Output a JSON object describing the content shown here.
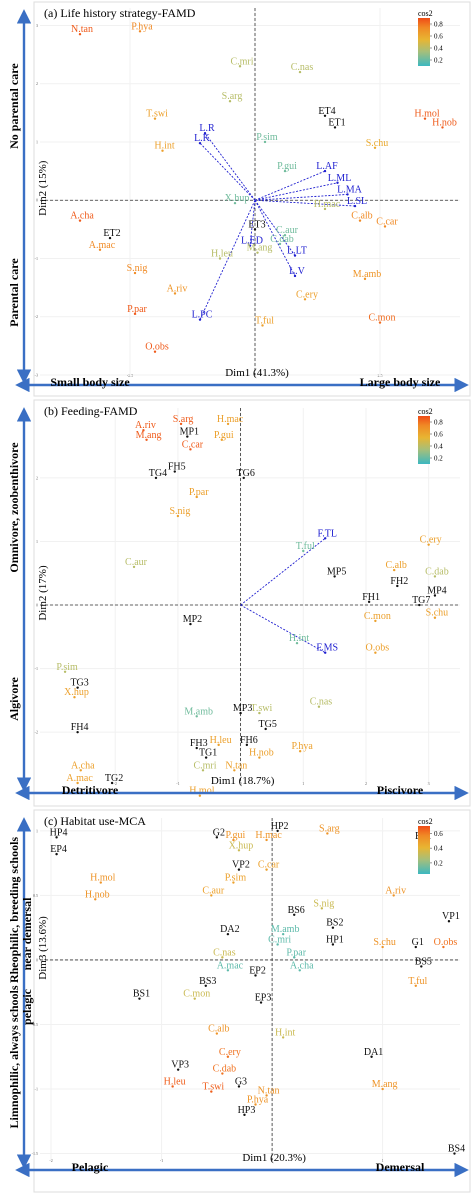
{
  "colors": {
    "black": "#111111",
    "blue": "#1f1fd0",
    "teal": "#39b5b5",
    "sage": "#9bb08a",
    "gold": "#e2b43a",
    "orange": "#e06a1e",
    "arrow": "#3a6fc4",
    "frame": "#dddddd"
  },
  "cos2_gradient": [
    "#3cb8c0",
    "#a6bf7a",
    "#e8b532",
    "#f08a25",
    "#ef4b17"
  ],
  "chart_data": [
    {
      "type": "scatter",
      "title": "(a) Life history strategy-FAMD",
      "xlabel": "Dim1 (41.3%)",
      "ylabel": "Dim2 (15%)",
      "left_top": "No parental care",
      "left_bottom": "Parental care",
      "bottom_left": "Small body size",
      "bottom_right": "Large body size",
      "xlim": [
        -4.3,
        4.1
      ],
      "ylim": [
        -3.0,
        3.3
      ],
      "x_ticks": [
        -2.5,
        0,
        2.5
      ],
      "y_ticks": [
        -3,
        -2,
        -1,
        0,
        1,
        2,
        3
      ],
      "legend": {
        "title": "cos2",
        "ticks": [
          0.2,
          0.4,
          0.6,
          0.8
        ],
        "range": [
          0.1,
          0.9
        ],
        "placement": "top-right"
      },
      "points": [
        {
          "label": "N.tan",
          "x": -3.5,
          "y": 2.85,
          "cos2": 0.85
        },
        {
          "label": "P.hya",
          "x": -2.3,
          "y": 2.9,
          "cos2": 0.7
        },
        {
          "label": "C.mri",
          "x": -0.3,
          "y": 2.3,
          "cos2": 0.35
        },
        {
          "label": "C.nas",
          "x": 0.9,
          "y": 2.2,
          "cos2": 0.35
        },
        {
          "label": "S.arg",
          "x": -0.5,
          "y": 1.7,
          "cos2": 0.35
        },
        {
          "label": "ET4",
          "x": 1.4,
          "y": 1.45,
          "cat": true
        },
        {
          "label": "ET1",
          "x": 1.6,
          "y": 1.25,
          "cat": true
        },
        {
          "label": "H.mol",
          "x": 3.4,
          "y": 1.4,
          "cos2": 0.85
        },
        {
          "label": "H.nob",
          "x": 3.75,
          "y": 1.25,
          "cos2": 0.85
        },
        {
          "label": "S.chu",
          "x": 2.4,
          "y": 0.9,
          "cos2": 0.55
        },
        {
          "label": "T.swi",
          "x": -2.0,
          "y": 1.4,
          "cos2": 0.6
        },
        {
          "label": "P.sim",
          "x": 0.2,
          "y": 1.0,
          "cos2": 0.2
        },
        {
          "label": "L.R",
          "x": -1.0,
          "y": 1.15,
          "sup": true
        },
        {
          "label": "L.K",
          "x": -1.1,
          "y": 0.98,
          "sup": true
        },
        {
          "label": "H.int",
          "x": -1.85,
          "y": 0.85,
          "cos2": 0.6
        },
        {
          "label": "P.gui",
          "x": 0.6,
          "y": 0.5,
          "cos2": 0.2
        },
        {
          "label": "L.AF",
          "x": 1.4,
          "y": 0.5,
          "sup": true
        },
        {
          "label": "L.ML",
          "x": 1.65,
          "y": 0.3,
          "sup": true
        },
        {
          "label": "L.MA",
          "x": 1.85,
          "y": 0.1,
          "sup": true
        },
        {
          "label": "L.SL",
          "x": 2.0,
          "y": -0.1,
          "sup": true
        },
        {
          "label": "X.hup",
          "x": -0.4,
          "y": -0.05,
          "cos2": 0.2
        },
        {
          "label": "H.mac",
          "x": 1.4,
          "y": -0.15,
          "cos2": 0.35
        },
        {
          "label": "C.alb",
          "x": 2.1,
          "y": -0.35,
          "cos2": 0.7
        },
        {
          "label": "C.car",
          "x": 2.6,
          "y": -0.45,
          "cos2": 0.7
        },
        {
          "label": "A.cha",
          "x": -3.5,
          "y": -0.35,
          "cos2": 0.85
        },
        {
          "label": "ET2",
          "x": -2.9,
          "y": -0.65,
          "cat": true
        },
        {
          "label": "ET3",
          "x": 0.0,
          "y": -0.5,
          "cat": true
        },
        {
          "label": "C.aur",
          "x": 0.6,
          "y": -0.6,
          "cos2": 0.2
        },
        {
          "label": "C.dab",
          "x": 0.5,
          "y": -0.75,
          "cos2": 0.2
        },
        {
          "label": "L.ED",
          "x": -0.1,
          "y": -0.78,
          "sup": true
        },
        {
          "label": "M.ang",
          "x": 0.05,
          "y": -0.9,
          "cos2": 0.35
        },
        {
          "label": "H.leu",
          "x": -0.7,
          "y": -1.0,
          "cos2": 0.35
        },
        {
          "label": "L.LT",
          "x": 0.8,
          "y": -0.95,
          "sup": true
        },
        {
          "label": "A.mac",
          "x": -3.1,
          "y": -0.85,
          "cos2": 0.7
        },
        {
          "label": "S.nig",
          "x": -2.4,
          "y": -1.25,
          "cos2": 0.7
        },
        {
          "label": "L.V",
          "x": 0.8,
          "y": -1.3,
          "sup": true
        },
        {
          "label": "M.amb",
          "x": 2.2,
          "y": -1.35,
          "cos2": 0.65
        },
        {
          "label": "A.riv",
          "x": -1.6,
          "y": -1.6,
          "cos2": 0.65
        },
        {
          "label": "C.ery",
          "x": 1.0,
          "y": -1.7,
          "cos2": 0.6
        },
        {
          "label": "P.par",
          "x": -2.4,
          "y": -1.95,
          "cos2": 0.85
        },
        {
          "label": "L.PC",
          "x": -1.1,
          "y": -2.05,
          "sup": true
        },
        {
          "label": "C.mon",
          "x": 2.5,
          "y": -2.1,
          "cos2": 0.8
        },
        {
          "label": "T.ful",
          "x": 0.15,
          "y": -2.15,
          "cos2": 0.6
        },
        {
          "label": "O.obs",
          "x": -2.0,
          "y": -2.6,
          "cos2": 0.85
        }
      ]
    },
    {
      "type": "scatter",
      "title": "(b) Feeding-FAMD",
      "xlabel": "Dim1 (18.7%)",
      "ylabel": "Dim2 (17%)",
      "left_top": "Omnivore, zoobenthivore",
      "left_bottom": "Algivore",
      "bottom_left": "Detritivore",
      "bottom_right": "Piscivore",
      "xlim": [
        -3.2,
        3.5
      ],
      "ylim": [
        -2.8,
        3.1
      ],
      "x_ticks": [
        -2,
        -1,
        0,
        1,
        2,
        3
      ],
      "y_ticks": [
        -2,
        -1,
        0,
        1,
        2
      ],
      "legend": {
        "title": "cos2",
        "ticks": [
          0.2,
          0.4,
          0.6,
          0.8
        ],
        "range": [
          0.1,
          0.9
        ],
        "placement": "top-right"
      },
      "points": [
        {
          "label": "A.riv",
          "x": -1.55,
          "y": 2.75,
          "cos2": 0.85
        },
        {
          "label": "S.arg",
          "x": -0.95,
          "y": 2.85,
          "cos2": 0.85
        },
        {
          "label": "H.mac",
          "x": -0.2,
          "y": 2.85,
          "cos2": 0.6
        },
        {
          "label": "M.ang",
          "x": -1.5,
          "y": 2.6,
          "cos2": 0.85
        },
        {
          "label": "MP1",
          "x": -0.85,
          "y": 2.65,
          "cat": true
        },
        {
          "label": "P.gui",
          "x": -0.3,
          "y": 2.6,
          "cos2": 0.6
        },
        {
          "label": "C.car",
          "x": -0.8,
          "y": 2.45,
          "cos2": 0.85
        },
        {
          "label": "FH5",
          "x": -1.05,
          "y": 2.1,
          "cat": true
        },
        {
          "label": "TG4",
          "x": -1.35,
          "y": 2.0,
          "cat": true
        },
        {
          "label": "TG6",
          "x": 0.05,
          "y": 2.0,
          "cat": true
        },
        {
          "label": "P.par",
          "x": -0.7,
          "y": 1.7,
          "cos2": 0.6
        },
        {
          "label": "S.nig",
          "x": -1.0,
          "y": 1.4,
          "cos2": 0.6
        },
        {
          "label": "F.TL",
          "x": 1.35,
          "y": 1.05,
          "sup": true
        },
        {
          "label": "T.ful",
          "x": 1.0,
          "y": 0.85,
          "cos2": 0.2
        },
        {
          "label": "C.aur",
          "x": -1.7,
          "y": 0.6,
          "cos2": 0.35
        },
        {
          "label": "MP5",
          "x": 1.5,
          "y": 0.45,
          "cat": true
        },
        {
          "label": "C.ery",
          "x": 3.0,
          "y": 0.95,
          "cos2": 0.6
        },
        {
          "label": "C.alb",
          "x": 2.45,
          "y": 0.55,
          "cos2": 0.6
        },
        {
          "label": "C.dab",
          "x": 3.1,
          "y": 0.45,
          "cos2": 0.35
        },
        {
          "label": "FH2",
          "x": 2.5,
          "y": 0.3,
          "cat": true
        },
        {
          "label": "MP4",
          "x": 3.1,
          "y": 0.15,
          "cat": true
        },
        {
          "label": "FH1",
          "x": 2.05,
          "y": 0.05,
          "cat": true
        },
        {
          "label": "TG7",
          "x": 2.85,
          "y": 0.0,
          "cat": true
        },
        {
          "label": "C.mon",
          "x": 2.15,
          "y": -0.25,
          "cos2": 0.6
        },
        {
          "label": "S.chu",
          "x": 3.1,
          "y": -0.2,
          "cos2": 0.6
        },
        {
          "label": "MP2",
          "x": -0.8,
          "y": -0.3,
          "cat": true
        },
        {
          "label": "H.int",
          "x": 0.9,
          "y": -0.6,
          "cos2": 0.2
        },
        {
          "label": "O.obs",
          "x": 2.15,
          "y": -0.75,
          "cos2": 0.6
        },
        {
          "label": "F.MS",
          "x": 1.35,
          "y": -0.75,
          "sup": true
        },
        {
          "label": "P.sim",
          "x": -2.8,
          "y": -1.05,
          "cos2": 0.35
        },
        {
          "label": "TG3",
          "x": -2.6,
          "y": -1.3,
          "cat": true
        },
        {
          "label": "X.hup",
          "x": -2.65,
          "y": -1.45,
          "cos2": 0.6
        },
        {
          "label": "C.nas",
          "x": 1.25,
          "y": -1.6,
          "cos2": 0.35
        },
        {
          "label": "M.amb",
          "x": -0.7,
          "y": -1.75,
          "cos2": 0.2
        },
        {
          "label": "MP3",
          "x": 0.0,
          "y": -1.7,
          "cat": true
        },
        {
          "label": "T.swi",
          "x": 0.3,
          "y": -1.7,
          "cos2": 0.35
        },
        {
          "label": "FH4",
          "x": -2.6,
          "y": -2.0,
          "cat": true
        },
        {
          "label": "TG5",
          "x": 0.4,
          "y": -1.95,
          "cat": true
        },
        {
          "label": "FH3",
          "x": -0.7,
          "y": -2.25,
          "cat": true
        },
        {
          "label": "H.leu",
          "x": -0.35,
          "y": -2.2,
          "cos2": 0.6
        },
        {
          "label": "FH6",
          "x": 0.1,
          "y": -2.2,
          "cat": true
        },
        {
          "label": "P.hya",
          "x": 0.95,
          "y": -2.3,
          "cos2": 0.6
        },
        {
          "label": "TG1",
          "x": -0.55,
          "y": -2.4,
          "cat": true
        },
        {
          "label": "H.nob",
          "x": 0.3,
          "y": -2.4,
          "cos2": 0.6
        },
        {
          "label": "A.cha",
          "x": -2.55,
          "y": -2.6,
          "cos2": 0.6
        },
        {
          "label": "N.tan",
          "x": -0.1,
          "y": -2.6,
          "cos2": 0.6
        },
        {
          "label": "C.mri",
          "x": -0.6,
          "y": -2.6,
          "cos2": 0.35
        },
        {
          "label": "A.mac",
          "x": -2.6,
          "y": -2.8,
          "cos2": 0.6
        },
        {
          "label": "TG2",
          "x": -2.05,
          "y": -2.8,
          "cat": true
        },
        {
          "label": "H.mol",
          "x": -0.65,
          "y": -3.0,
          "cos2": 0.6
        }
      ]
    },
    {
      "type": "scatter",
      "title": "(c) Habitat use-MCA",
      "xlabel": "Dim1 (20.3%)",
      "ylabel": "Dim3 (13.6%)",
      "left_top": "Rheophilic, breeding schools",
      "left_mid": "near demersal",
      "left_bottom": "Limnophilic, always schools",
      "left_mid2": "pelagic",
      "bottom_left": "Pelagic",
      "bottom_right": "Demersal",
      "xlim": [
        -2.1,
        1.7
      ],
      "ylim": [
        -1.55,
        1.1
      ],
      "x_ticks": [
        -2,
        -1,
        0,
        1
      ],
      "y_ticks": [
        -1.5,
        -1.0,
        -0.5,
        0.0,
        0.5,
        1.0
      ],
      "legend": {
        "title": "cos2",
        "ticks": [
          0.2,
          0.4,
          0.6
        ],
        "range": [
          0.05,
          0.7
        ],
        "placement": "top-right"
      },
      "points": [
        {
          "label": "HP4",
          "x": -1.95,
          "y": 0.95,
          "cat": true
        },
        {
          "label": "EP4",
          "x": -1.95,
          "y": 0.82,
          "cat": true
        },
        {
          "label": "G2",
          "x": -0.5,
          "y": 0.95,
          "cat": true
        },
        {
          "label": "HP2",
          "x": 0.05,
          "y": 1.0,
          "cat": true
        },
        {
          "label": "P.gui",
          "x": -0.35,
          "y": 0.93,
          "cos2": 0.5
        },
        {
          "label": "H.mac",
          "x": -0.05,
          "y": 0.93,
          "cos2": 0.5
        },
        {
          "label": "S.arg",
          "x": 0.5,
          "y": 0.98,
          "cos2": 0.5
        },
        {
          "label": "EP1",
          "x": 1.35,
          "y": 0.92,
          "cat": true
        },
        {
          "label": "X.hup",
          "x": -0.3,
          "y": 0.85,
          "cos2": 0.3
        },
        {
          "label": "H.mol",
          "x": -1.55,
          "y": 0.6,
          "cos2": 0.5
        },
        {
          "label": "VP2",
          "x": -0.3,
          "y": 0.7,
          "cat": true
        },
        {
          "label": "C.car",
          "x": -0.05,
          "y": 0.7,
          "cos2": 0.45
        },
        {
          "label": "P.sim",
          "x": -0.35,
          "y": 0.6,
          "cos2": 0.45
        },
        {
          "label": "H.nob",
          "x": -1.6,
          "y": 0.47,
          "cos2": 0.5
        },
        {
          "label": "C.aur",
          "x": -0.55,
          "y": 0.5,
          "cos2": 0.45
        },
        {
          "label": "A.riv",
          "x": 1.1,
          "y": 0.5,
          "cos2": 0.5
        },
        {
          "label": "S.nig",
          "x": 0.45,
          "y": 0.4,
          "cos2": 0.3
        },
        {
          "label": "BS6",
          "x": 0.2,
          "y": 0.35,
          "cat": true
        },
        {
          "label": "VP1",
          "x": 1.6,
          "y": 0.3,
          "cat": true
        },
        {
          "label": "BS2",
          "x": 0.55,
          "y": 0.25,
          "cat": true
        },
        {
          "label": "DA2",
          "x": -0.4,
          "y": 0.2,
          "cat": true
        },
        {
          "label": "M.amb",
          "x": 0.1,
          "y": 0.2,
          "cos2": 0.1
        },
        {
          "label": "HP1",
          "x": 0.55,
          "y": 0.12,
          "cat": true
        },
        {
          "label": "C.mri",
          "x": 0.05,
          "y": 0.12,
          "cos2": 0.1
        },
        {
          "label": "G1",
          "x": 1.3,
          "y": 0.1,
          "cat": true
        },
        {
          "label": "S.chu",
          "x": 1.0,
          "y": 0.1,
          "cos2": 0.5
        },
        {
          "label": "O.obs",
          "x": 1.55,
          "y": 0.1,
          "cos2": 0.6
        },
        {
          "label": "C.nas",
          "x": -0.45,
          "y": 0.02,
          "cos2": 0.3
        },
        {
          "label": "P.par",
          "x": 0.2,
          "y": 0.02,
          "cos2": 0.1
        },
        {
          "label": "BS5",
          "x": 1.35,
          "y": -0.05,
          "cat": true
        },
        {
          "label": "A.mac",
          "x": -0.4,
          "y": -0.08,
          "cos2": 0.1
        },
        {
          "label": "A.cha",
          "x": 0.25,
          "y": -0.08,
          "cos2": 0.1
        },
        {
          "label": "EP2",
          "x": -0.15,
          "y": -0.12,
          "cat": true
        },
        {
          "label": "T.ful",
          "x": 1.3,
          "y": -0.2,
          "cos2": 0.5
        },
        {
          "label": "BS3",
          "x": -0.6,
          "y": -0.2,
          "cat": true
        },
        {
          "label": "BS1",
          "x": -1.2,
          "y": -0.3,
          "cat": true
        },
        {
          "label": "C.mon",
          "x": -0.7,
          "y": -0.3,
          "cos2": 0.3
        },
        {
          "label": "EP3",
          "x": -0.1,
          "y": -0.33,
          "cat": true
        },
        {
          "label": "C.alb",
          "x": -0.5,
          "y": -0.57,
          "cos2": 0.5
        },
        {
          "label": "H.int",
          "x": 0.1,
          "y": -0.6,
          "cos2": 0.3
        },
        {
          "label": "C.ery",
          "x": -0.4,
          "y": -0.75,
          "cos2": 0.6
        },
        {
          "label": "DA1",
          "x": 0.9,
          "y": -0.75,
          "cat": true
        },
        {
          "label": "VP3",
          "x": -0.85,
          "y": -0.85,
          "cat": true
        },
        {
          "label": "C.dab",
          "x": -0.45,
          "y": -0.88,
          "cos2": 0.6
        },
        {
          "label": "M.ang",
          "x": 1.0,
          "y": -1.0,
          "cos2": 0.5
        },
        {
          "label": "H.leu",
          "x": -0.9,
          "y": -0.98,
          "cos2": 0.65
        },
        {
          "label": "G3",
          "x": -0.3,
          "y": -0.98,
          "cat": true
        },
        {
          "label": "T.swi",
          "x": -0.55,
          "y": -1.02,
          "cos2": 0.65
        },
        {
          "label": "N.tan",
          "x": -0.05,
          "y": -1.05,
          "cos2": 0.5
        },
        {
          "label": "P.hya",
          "x": -0.15,
          "y": -1.12,
          "cos2": 0.5
        },
        {
          "label": "HP3",
          "x": -0.25,
          "y": -1.2,
          "cat": true
        },
        {
          "label": "BS4",
          "x": 1.65,
          "y": -1.5,
          "cat": true
        }
      ]
    }
  ]
}
